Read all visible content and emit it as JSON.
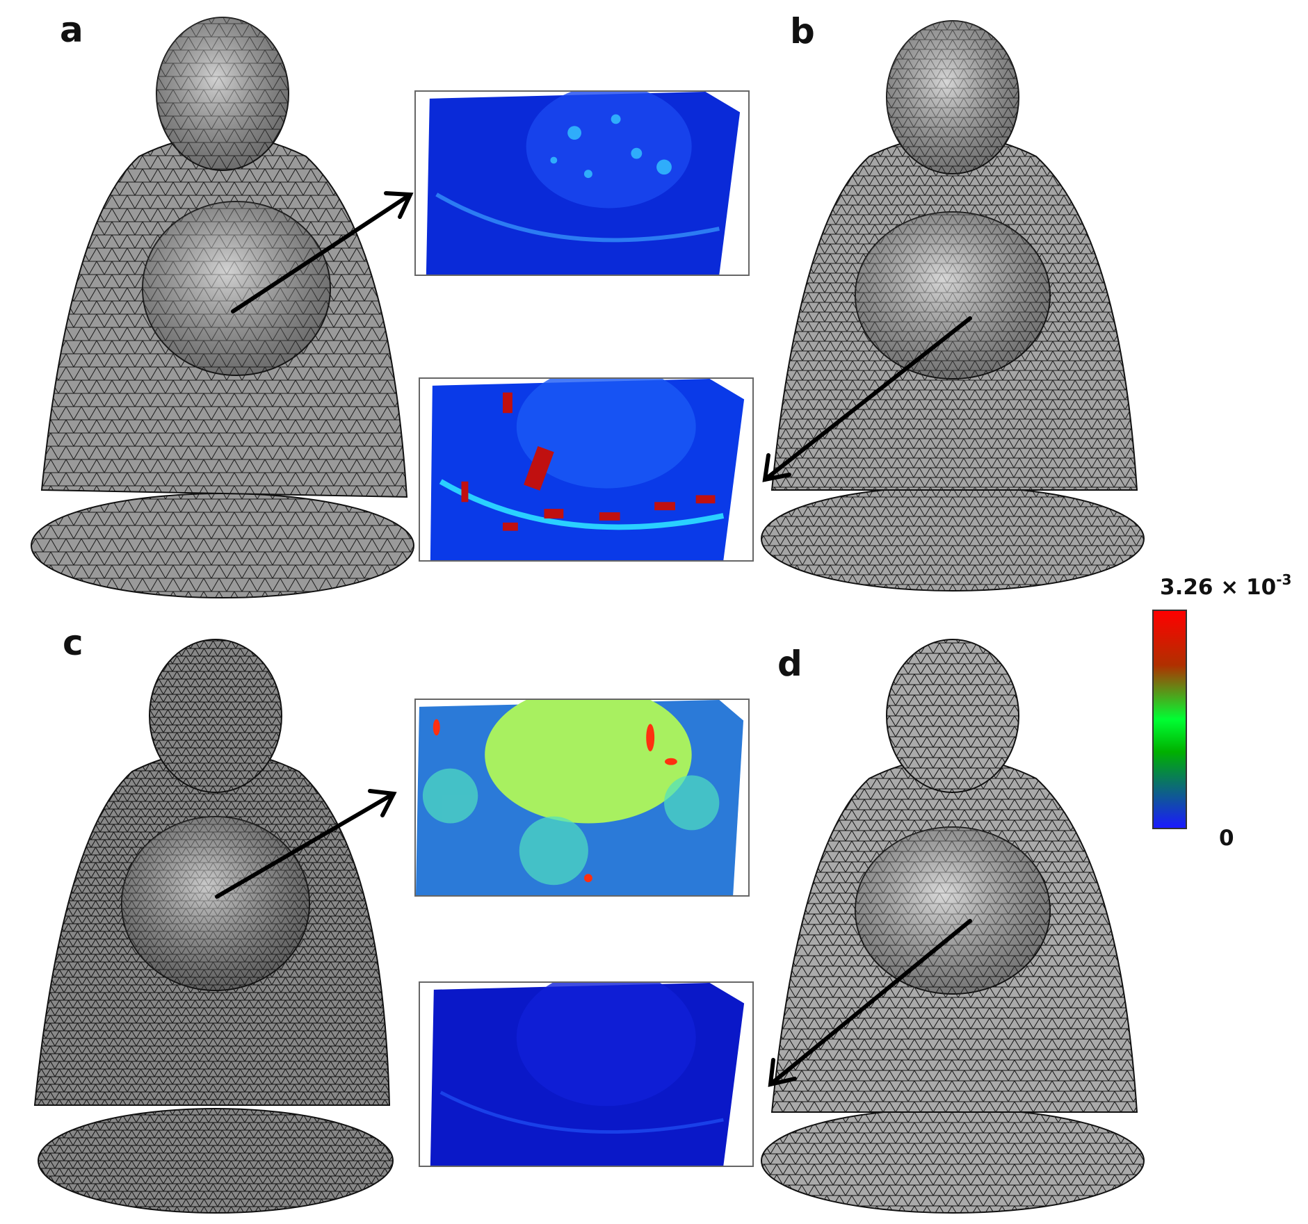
{
  "panels": [
    {
      "id": "a",
      "label": "a"
    },
    {
      "id": "b",
      "label": "b"
    },
    {
      "id": "c",
      "label": "c"
    },
    {
      "id": "d",
      "label": "d"
    }
  ],
  "colorbar": {
    "max_mantissa": "3.26 × 10",
    "max_exponent": "-3",
    "min_label": "0",
    "colors": [
      "#1a1aff",
      "#00b000",
      "#00ff33",
      "#b03000",
      "#ff0000"
    ]
  },
  "insets": [
    {
      "name": "inset-a",
      "dominant_color": "blue",
      "hot_spots": "few"
    },
    {
      "name": "inset-b",
      "dominant_color": "blue",
      "hot_spots": "many-red"
    },
    {
      "name": "inset-c",
      "dominant_color": "green-cyan",
      "hot_spots": "some-red"
    },
    {
      "name": "inset-d",
      "dominant_color": "dark-blue",
      "hot_spots": "none"
    }
  ],
  "icons": {
    "arrow": "arrow-icon",
    "mesh": "buddha-mesh-icon"
  }
}
